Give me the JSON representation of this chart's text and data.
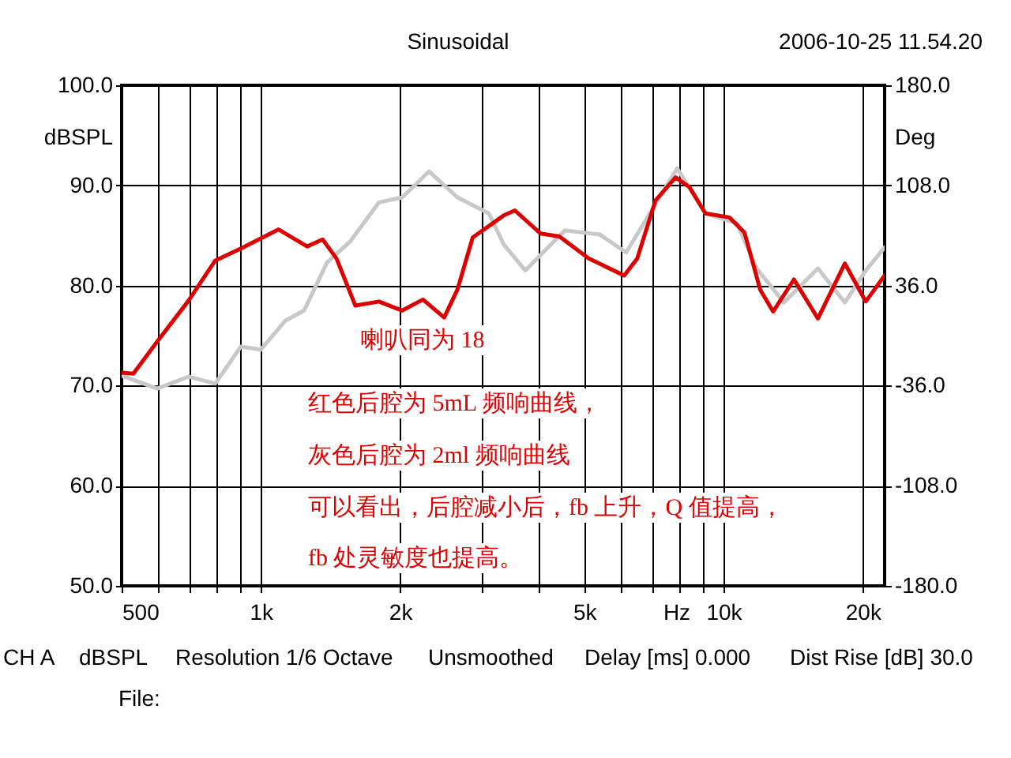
{
  "chart_data": {
    "type": "line",
    "xlabel": "Hz",
    "ylabel": "dBSPL",
    "y2label": "Deg",
    "annotations": [
      "Sinusoidal",
      "2006-10-25 11.54.20",
      "喇叭同为 18",
      "红色后腔为 5mL 频响曲线，",
      "灰色后腔为 2ml 频响曲线",
      "可以看出，后腔减小后，fb 上升，Q 值提高，",
      "fb 处灵敏度也提高。",
      "CH A",
      "dBSPL",
      "Resolution 1/6 Octave",
      "Unsmoothed",
      "Delay [ms] 0.000",
      "Dist Rise [dB] 30.0",
      "File:"
    ],
    "log": "x",
    "grid": true,
    "line_style": "solid",
    "xlim": [
      500,
      22300
    ],
    "xticks": [
      500,
      {
        "value": 600,
        "label": null
      },
      {
        "value": 700,
        "label": null
      },
      {
        "value": 800,
        "label": null
      },
      {
        "value": 900,
        "label": null
      },
      {
        "value": 1000,
        "label": "1k"
      },
      {
        "value": 2000,
        "label": "2k"
      },
      {
        "value": 3000,
        "label": null
      },
      {
        "value": 4000,
        "label": null
      },
      {
        "value": 5000,
        "label": "5k"
      },
      {
        "value": 6000,
        "label": null
      },
      {
        "value": 7000,
        "label": null
      },
      {
        "value": 8000,
        "label": null
      },
      {
        "value": 9000,
        "label": null
      },
      {
        "value": 10000,
        "label": "10k"
      },
      {
        "value": 20000,
        "label": "20k"
      }
    ],
    "ylim": [
      50,
      100
    ],
    "yticks": [
      {
        "value": 50,
        "label": "50.0"
      },
      {
        "value": 60,
        "label": "60.0"
      },
      {
        "value": 70,
        "label": "70.0"
      },
      {
        "value": 80,
        "label": "80.0"
      },
      {
        "value": 90,
        "label": "90.0"
      },
      {
        "value": 100,
        "label": "100.0"
      }
    ],
    "y2lim": [
      -180,
      180
    ],
    "y2ticks": [
      {
        "value": -180,
        "label": "-180.0"
      },
      {
        "value": -108,
        "label": "-108.0"
      },
      {
        "value": -36,
        "label": "-36.0"
      },
      {
        "value": 36,
        "label": "36.0"
      },
      {
        "value": 108,
        "label": "108.0"
      },
      {
        "value": 180,
        "label": "180.0"
      }
    ],
    "series": [
      {
        "color": "#c8c8c8",
        "x": [
          500,
          597,
          698,
          797,
          905,
          1000,
          1130,
          1240,
          1390,
          1560,
          1800,
          2020,
          2310,
          2660,
          3110,
          3350,
          3730,
          4540,
          5400,
          6160,
          7940,
          9140,
          10700,
          11800,
          13500,
          16000,
          18300,
          20300,
          22300
        ],
        "values": [
          71.0,
          69.7,
          70.9,
          70.2,
          73.9,
          73.6,
          76.5,
          77.5,
          82.3,
          84.4,
          88.3,
          88.8,
          91.4,
          88.8,
          87.2,
          84.1,
          81.5,
          85.5,
          85.1,
          83.3,
          91.7,
          87.2,
          86.2,
          81.7,
          78.3,
          81.7,
          78.3,
          81.5,
          83.8
        ]
      },
      {
        "color": "#dd0000",
        "x": [
          500,
          530,
          597,
          698,
          797,
          905,
          1092,
          1259,
          1360,
          1457,
          1600,
          1800,
          2020,
          2240,
          2490,
          2660,
          2870,
          3350,
          3540,
          4020,
          4420,
          5110,
          6100,
          6510,
          7130,
          7880,
          8450,
          9140,
          10300,
          11100,
          12000,
          12800,
          14200,
          16000,
          18300,
          20300,
          22300
        ],
        "values": [
          71.3,
          71.2,
          74.4,
          78.5,
          82.5,
          83.7,
          85.6,
          83.9,
          84.6,
          82.7,
          78.0,
          78.4,
          77.5,
          78.6,
          76.8,
          79.6,
          84.8,
          87.0,
          87.5,
          85.2,
          84.9,
          82.7,
          81.0,
          82.7,
          88.5,
          90.8,
          89.8,
          87.2,
          86.8,
          85.3,
          79.6,
          77.4,
          80.6,
          76.7,
          82.2,
          78.4,
          81.0
        ]
      }
    ]
  }
}
